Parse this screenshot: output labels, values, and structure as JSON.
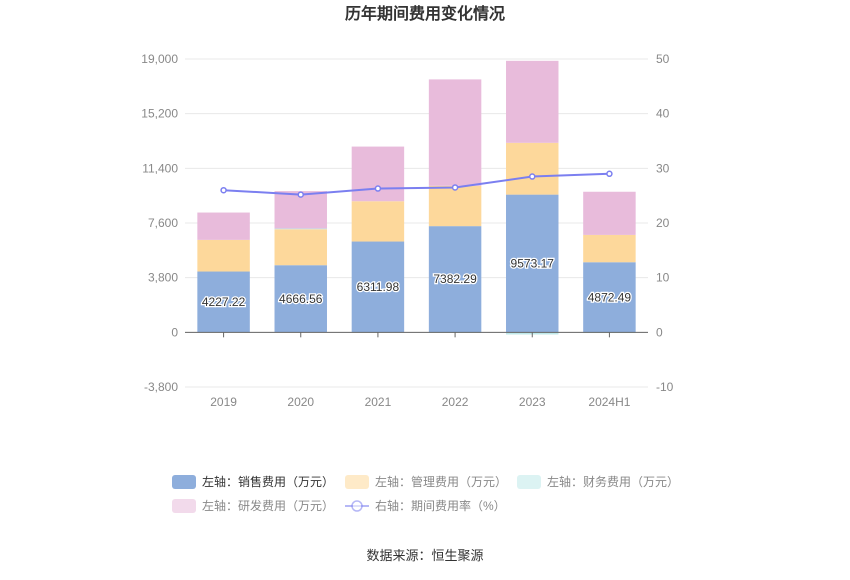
{
  "title": "历年期间费用变化情况",
  "source": "数据来源：恒生聚源",
  "colors": {
    "sales": "#8eaedc",
    "admin": "#fdd89b",
    "finance": "#bfe9ea",
    "rd": "#e8bbdb",
    "rate": "#7b7ff0",
    "axis_text": "#888888",
    "grid": "#e8e8e8",
    "axis_line": "#666666",
    "title": "#333333"
  },
  "chart_data": {
    "type": "bar",
    "stacked": true,
    "title": "历年期间费用变化情况",
    "categories": [
      "2019",
      "2020",
      "2021",
      "2022",
      "2023",
      "2024H1"
    ],
    "left_axis": {
      "ticks": [
        "-3,800",
        "0",
        "3,800",
        "7,600",
        "11,400",
        "15,200",
        "19,000"
      ],
      "range": [
        -3800,
        19000
      ]
    },
    "right_axis": {
      "ticks": [
        "-10",
        "0",
        "10",
        "20",
        "30",
        "40",
        "50"
      ],
      "range": [
        -10,
        50
      ]
    },
    "series": [
      {
        "key": "sales",
        "name": "左轴：销售费用（万元）",
        "axis": "left",
        "kind": "bar",
        "values": [
          4227.22,
          4666.56,
          6311.98,
          7382.29,
          9573.17,
          4872.49
        ],
        "labels": [
          "4227.22",
          "4666.56",
          "6311.98",
          "7382.29",
          "9573.17",
          "4872.49"
        ]
      },
      {
        "key": "admin",
        "name": "左轴：管理费用（万元）",
        "axis": "left",
        "kind": "bar",
        "values": [
          2200,
          2500,
          2800,
          2800,
          3600,
          1900
        ]
      },
      {
        "key": "finance",
        "name": "左轴：财务费用（万元）",
        "axis": "left",
        "kind": "bar",
        "values": [
          -20,
          50,
          -30,
          -40,
          -150,
          -50
        ]
      },
      {
        "key": "rd",
        "name": "左轴：研发费用（万元）",
        "axis": "left",
        "kind": "bar",
        "values": [
          1900,
          2600,
          3800,
          7400,
          5700,
          3000
        ]
      },
      {
        "key": "rate",
        "name": "右轴：期间费用率（%）",
        "axis": "right",
        "kind": "line",
        "values": [
          26.0,
          25.2,
          26.3,
          26.5,
          28.5,
          29.0
        ]
      }
    ],
    "legend_position": "bottom",
    "grid": true
  }
}
